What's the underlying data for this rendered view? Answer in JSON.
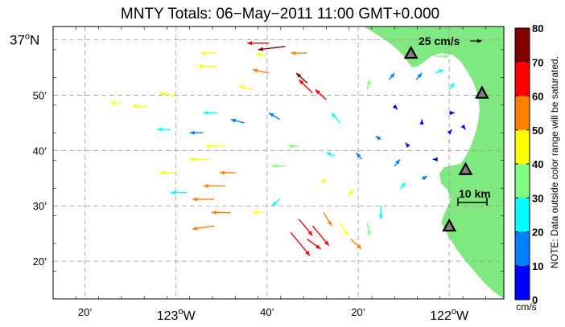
{
  "title": "MNTY Totals: 06−May−2011 11:00 GMT+0.000",
  "reference_vector_label": "25 cm/s",
  "scale_bar_label": "10 km",
  "note": "NOTE: Data outside color range will be saturated.",
  "colorbar": {
    "unit": "cm/s",
    "ticks": [
      "0",
      "10",
      "20",
      "30",
      "40",
      "50",
      "60",
      "70",
      "80"
    ],
    "min": 0,
    "max": 80,
    "bins": [
      {
        "from": 0,
        "to": 10,
        "color": "#0000ff"
      },
      {
        "from": 10,
        "to": 20,
        "color": "#0080ff"
      },
      {
        "from": 20,
        "to": 30,
        "color": "#00ffff"
      },
      {
        "from": 30,
        "to": 40,
        "color": "#80ff80"
      },
      {
        "from": 40,
        "to": 50,
        "color": "#ffff00"
      },
      {
        "from": 50,
        "to": 60,
        "color": "#ff8000"
      },
      {
        "from": 60,
        "to": 70,
        "color": "#ff0000"
      },
      {
        "from": 70,
        "to": 80,
        "color": "#800000"
      }
    ]
  },
  "axes": {
    "lat_labels": [
      {
        "major": "37",
        "minor": "",
        "lat": 37.0
      },
      {
        "major": "",
        "minor": "50’",
        "lat": 36.8333
      },
      {
        "major": "",
        "minor": "40’",
        "lat": 36.6667
      },
      {
        "major": "",
        "minor": "30’",
        "lat": 36.5
      },
      {
        "major": "",
        "minor": "20’",
        "lat": 36.3333
      }
    ],
    "lon_labels": [
      {
        "major": "",
        "minor": "20’",
        "lon": -123.3333
      },
      {
        "major": "123",
        "minor": "",
        "lon": -123.0
      },
      {
        "major": "",
        "minor": "40’",
        "lon": -122.6667
      },
      {
        "major": "",
        "minor": "20’",
        "lon": -122.3333
      },
      {
        "major": "122",
        "minor": "",
        "lon": -122.0
      }
    ],
    "lat_range": [
      36.22,
      37.04
    ],
    "lon_range": [
      -123.45,
      -121.8
    ]
  },
  "land_color": "#80e880",
  "stations": [
    {
      "lon": -122.14,
      "lat": 36.96
    },
    {
      "lon": -121.88,
      "lat": 36.84
    },
    {
      "lon": -121.94,
      "lat": 36.61
    },
    {
      "lon": -122.0,
      "lat": 36.44
    }
  ],
  "vectors": [
    {
      "lon": -122.66,
      "lat": 36.99,
      "dlon": -0.08,
      "dlat": 0.0,
      "speed": 63
    },
    {
      "lon": -122.6,
      "lat": 36.98,
      "dlon": -0.1,
      "dlat": -0.01,
      "speed": 72
    },
    {
      "lon": -122.67,
      "lat": 36.95,
      "dlon": -0.04,
      "dlat": 0.01,
      "speed": 45
    },
    {
      "lon": -122.52,
      "lat": 36.96,
      "dlon": -0.06,
      "dlat": 0.0,
      "speed": 52
    },
    {
      "lon": -122.85,
      "lat": 36.96,
      "dlon": -0.06,
      "dlat": 0.0,
      "speed": 44
    },
    {
      "lon": -122.85,
      "lat": 36.92,
      "dlon": -0.07,
      "dlat": 0.0,
      "speed": 48
    },
    {
      "lon": -122.66,
      "lat": 36.9,
      "dlon": -0.06,
      "dlat": 0.01,
      "speed": 55
    },
    {
      "lon": -122.72,
      "lat": 36.85,
      "dlon": -0.05,
      "dlat": 0.01,
      "speed": 42
    },
    {
      "lon": -123.0,
      "lat": 36.83,
      "dlon": -0.06,
      "dlat": 0.01,
      "speed": 47
    },
    {
      "lon": -123.1,
      "lat": 36.8,
      "dlon": -0.06,
      "dlat": 0.0,
      "speed": 42
    },
    {
      "lon": -123.2,
      "lat": 36.81,
      "dlon": -0.04,
      "dlat": 0.0,
      "speed": 45
    },
    {
      "lon": -123.02,
      "lat": 36.73,
      "dlon": -0.05,
      "dlat": 0.0,
      "speed": 25
    },
    {
      "lon": -122.9,
      "lat": 36.72,
      "dlon": -0.05,
      "dlat": 0.0,
      "speed": 18
    },
    {
      "lon": -122.85,
      "lat": 36.78,
      "dlon": -0.05,
      "dlat": 0.0,
      "speed": 22
    },
    {
      "lon": -122.75,
      "lat": 36.75,
      "dlon": -0.05,
      "dlat": 0.01,
      "speed": 16
    },
    {
      "lon": -122.62,
      "lat": 36.76,
      "dlon": -0.04,
      "dlat": 0.02,
      "speed": 14
    },
    {
      "lon": -122.52,
      "lat": 36.87,
      "dlon": -0.04,
      "dlat": 0.03,
      "speed": 72
    },
    {
      "lon": -122.5,
      "lat": 36.84,
      "dlon": -0.05,
      "dlat": 0.04,
      "speed": 65
    },
    {
      "lon": -122.45,
      "lat": 36.82,
      "dlon": -0.04,
      "dlat": 0.03,
      "speed": 62
    },
    {
      "lon": -122.4,
      "lat": 36.75,
      "dlon": -0.03,
      "dlat": 0.03,
      "speed": 24
    },
    {
      "lon": -122.3,
      "lat": 36.85,
      "dlon": 0.01,
      "dlat": 0.03,
      "speed": 36
    },
    {
      "lon": -122.22,
      "lat": 36.88,
      "dlon": 0.02,
      "dlat": 0.02,
      "speed": 14
    },
    {
      "lon": -122.12,
      "lat": 36.88,
      "dlon": 0.02,
      "dlat": 0.02,
      "speed": 16
    },
    {
      "lon": -122.05,
      "lat": 36.9,
      "dlon": 0.03,
      "dlat": 0.01,
      "speed": 24
    },
    {
      "lon": -122.0,
      "lat": 36.85,
      "dlon": 0.02,
      "dlat": 0.02,
      "speed": 26
    },
    {
      "lon": -122.2,
      "lat": 36.8,
      "dlon": 0.01,
      "dlat": -0.01,
      "speed": 6
    },
    {
      "lon": -122.1,
      "lat": 36.75,
      "dlon": 0.0,
      "dlat": 0.01,
      "speed": 4
    },
    {
      "lon": -122.0,
      "lat": 36.72,
      "dlon": 0.01,
      "dlat": 0.01,
      "speed": 8
    },
    {
      "lon": -122.15,
      "lat": 36.68,
      "dlon": -0.01,
      "dlat": 0.01,
      "speed": 6
    },
    {
      "lon": -122.05,
      "lat": 36.64,
      "dlon": -0.01,
      "dlat": 0.0,
      "speed": 5
    },
    {
      "lon": -122.25,
      "lat": 36.7,
      "dlon": -0.02,
      "dlat": 0.01,
      "speed": 12
    },
    {
      "lon": -122.32,
      "lat": 36.64,
      "dlon": -0.02,
      "dlat": 0.02,
      "speed": 18
    },
    {
      "lon": -122.42,
      "lat": 36.65,
      "dlon": -0.03,
      "dlat": 0.01,
      "speed": 28
    },
    {
      "lon": -122.55,
      "lat": 36.68,
      "dlon": -0.04,
      "dlat": 0.0,
      "speed": 34
    },
    {
      "lon": -122.6,
      "lat": 36.62,
      "dlon": -0.05,
      "dlat": 0.0,
      "speed": 38
    },
    {
      "lon": -122.82,
      "lat": 36.68,
      "dlon": -0.07,
      "dlat": 0.0,
      "speed": 44
    },
    {
      "lon": -122.88,
      "lat": 36.64,
      "dlon": -0.07,
      "dlat": 0.0,
      "speed": 48
    },
    {
      "lon": -122.78,
      "lat": 36.6,
      "dlon": -0.06,
      "dlat": 0.0,
      "speed": 52
    },
    {
      "lon": -122.82,
      "lat": 36.56,
      "dlon": -0.08,
      "dlat": 0.0,
      "speed": 56
    },
    {
      "lon": -122.86,
      "lat": 36.52,
      "dlon": -0.08,
      "dlat": 0.0,
      "speed": 54
    },
    {
      "lon": -122.8,
      "lat": 36.48,
      "dlon": -0.07,
      "dlat": 0.0,
      "speed": 52
    },
    {
      "lon": -122.86,
      "lat": 36.44,
      "dlon": -0.08,
      "dlat": -0.01,
      "speed": 55
    },
    {
      "lon": -122.96,
      "lat": 36.54,
      "dlon": -0.06,
      "dlat": 0.0,
      "speed": 22
    },
    {
      "lon": -123.0,
      "lat": 36.6,
      "dlon": -0.06,
      "dlat": 0.0,
      "speed": 40
    },
    {
      "lon": -122.55,
      "lat": 36.46,
      "dlon": 0.05,
      "dlat": -0.05,
      "speed": 64
    },
    {
      "lon": -122.5,
      "lat": 36.44,
      "dlon": 0.06,
      "dlat": -0.06,
      "speed": 68
    },
    {
      "lon": -122.58,
      "lat": 36.42,
      "dlon": 0.07,
      "dlat": -0.07,
      "speed": 66
    },
    {
      "lon": -122.52,
      "lat": 36.4,
      "dlon": 0.05,
      "dlat": -0.03,
      "speed": 62
    },
    {
      "lon": -122.46,
      "lat": 36.48,
      "dlon": 0.03,
      "dlat": -0.04,
      "speed": 58
    },
    {
      "lon": -122.4,
      "lat": 36.45,
      "dlon": 0.03,
      "dlat": -0.04,
      "speed": 44
    },
    {
      "lon": -122.36,
      "lat": 36.4,
      "dlon": 0.04,
      "dlat": -0.03,
      "speed": 52
    },
    {
      "lon": -122.3,
      "lat": 36.45,
      "dlon": 0.01,
      "dlat": -0.04,
      "speed": 38
    },
    {
      "lon": -122.25,
      "lat": 36.5,
      "dlon": 0.0,
      "dlat": -0.04,
      "speed": 26
    },
    {
      "lon": -122.35,
      "lat": 36.55,
      "dlon": -0.02,
      "dlat": -0.02,
      "speed": 42
    },
    {
      "lon": -122.45,
      "lat": 36.58,
      "dlon": -0.02,
      "dlat": -0.01,
      "speed": 40
    },
    {
      "lon": -122.18,
      "lat": 36.55,
      "dlon": 0.02,
      "dlat": 0.02,
      "speed": 22
    },
    {
      "lon": -122.1,
      "lat": 36.58,
      "dlon": 0.02,
      "dlat": 0.01,
      "speed": 12
    },
    {
      "lon": -122.2,
      "lat": 36.62,
      "dlon": 0.02,
      "dlat": 0.02,
      "speed": 16
    },
    {
      "lon": -122.0,
      "lat": 36.78,
      "dlon": 0.02,
      "dlat": 0.0,
      "speed": 4
    },
    {
      "lon": -121.95,
      "lat": 36.74,
      "dlon": 0.01,
      "dlat": -0.01,
      "speed": 6
    },
    {
      "lon": -122.62,
      "lat": 36.52,
      "dlon": -0.03,
      "dlat": -0.02,
      "speed": 28
    },
    {
      "lon": -122.68,
      "lat": 36.48,
      "dlon": -0.04,
      "dlat": 0.0,
      "speed": 44
    },
    {
      "lon": -122.05,
      "lat": 36.95,
      "dlon": 0.05,
      "dlat": 0.0,
      "speed": 32
    }
  ]
}
